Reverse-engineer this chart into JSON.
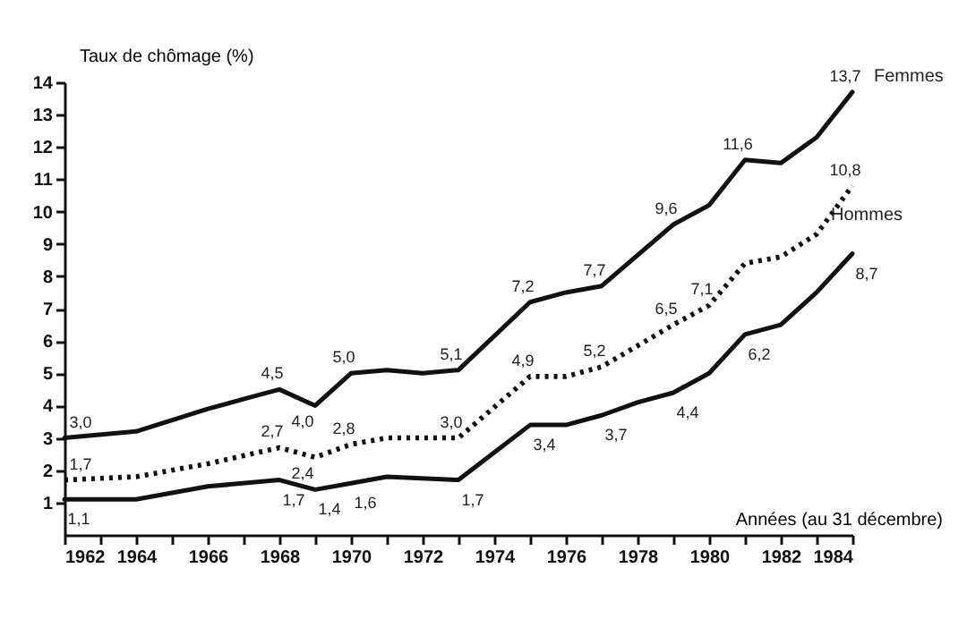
{
  "chart_data": {
    "type": "line",
    "xlabel": "Années (au 31 décembre)",
    "ylabel": "Taux de chômage (%)",
    "xlim": [
      1962,
      1984
    ],
    "ylim": [
      0,
      14
    ],
    "xticks": [
      1962,
      {
        "value": 1963,
        "label": null
      },
      1964,
      {
        "value": 1965,
        "label": null
      },
      1966,
      {
        "value": 1967,
        "label": null
      },
      1968,
      {
        "value": 1969,
        "label": null
      },
      1970,
      {
        "value": 1971,
        "label": null
      },
      1972,
      {
        "value": 1973,
        "label": null
      },
      1974,
      {
        "value": 1975,
        "label": null
      },
      1976,
      {
        "value": 1977,
        "label": null
      },
      1978,
      {
        "value": 1979,
        "label": null
      },
      1980,
      {
        "value": 1981,
        "label": null
      },
      1982,
      {
        "value": 1983,
        "label": null
      },
      1984
    ],
    "yticks": [
      1,
      2,
      3,
      4,
      5,
      6,
      7,
      8,
      9,
      10,
      11,
      12,
      13,
      14
    ],
    "grid": false,
    "marker": "none",
    "series": [
      {
        "name": "Femmes",
        "color": "#111111",
        "line_style": "solid",
        "x": [
          1962,
          1964,
          1966,
          1967,
          1968,
          1969,
          1970,
          1971,
          1972,
          1973,
          1975,
          1976,
          1977,
          1979,
          1980,
          1981,
          1982,
          1983,
          1984
        ],
        "values": [
          3.0,
          3.2,
          3.9,
          4.2,
          4.5,
          4.0,
          5.0,
          5.1,
          5.0,
          5.1,
          7.2,
          7.5,
          7.7,
          9.6,
          10.2,
          11.6,
          11.5,
          12.3,
          13.7
        ],
        "value_labels": [
          "3,0",
          null,
          null,
          null,
          "4,5",
          "4,0",
          "5,0",
          null,
          null,
          "5,1",
          "7,2",
          null,
          "7,7",
          "9,6",
          null,
          "11,6",
          null,
          null,
          "13,7"
        ]
      },
      {
        "color": "#111111",
        "line_style": "dotted",
        "x": [
          1962,
          1964,
          1966,
          1968,
          1969,
          1970,
          1971,
          1973,
          1975,
          1976,
          1977,
          1979,
          1980,
          1981,
          1982,
          1983,
          1984
        ],
        "values": [
          1.7,
          1.8,
          2.2,
          2.7,
          2.4,
          2.8,
          3.0,
          3.0,
          4.9,
          4.9,
          5.2,
          6.5,
          7.1,
          8.4,
          8.6,
          9.3,
          10.8
        ],
        "value_labels": [
          "1,7",
          null,
          null,
          "2,7",
          "2,4",
          "2,8",
          null,
          "3,0",
          "4,9",
          null,
          "5,2",
          "6,5",
          "7,1",
          null,
          null,
          null,
          "10,8"
        ]
      },
      {
        "name": "Hommes",
        "color": "#111111",
        "line_style": "solid",
        "x": [
          1962,
          1964,
          1966,
          1968,
          1969,
          1970,
          1971,
          1973,
          1975,
          1976,
          1977,
          1978,
          1979,
          1980,
          1981,
          1982,
          1983,
          1984
        ],
        "values": [
          1.1,
          1.1,
          1.5,
          1.7,
          1.4,
          1.6,
          1.8,
          1.7,
          3.4,
          3.4,
          3.7,
          4.1,
          4.4,
          5.0,
          6.2,
          6.5,
          7.5,
          8.7
        ],
        "value_labels": [
          "1,1",
          null,
          null,
          "1,7",
          "1,4",
          "1,6",
          null,
          "1,7",
          "3,4",
          null,
          "3,7",
          null,
          "4,4",
          null,
          "6,2",
          null,
          null,
          "8,7"
        ]
      }
    ]
  }
}
